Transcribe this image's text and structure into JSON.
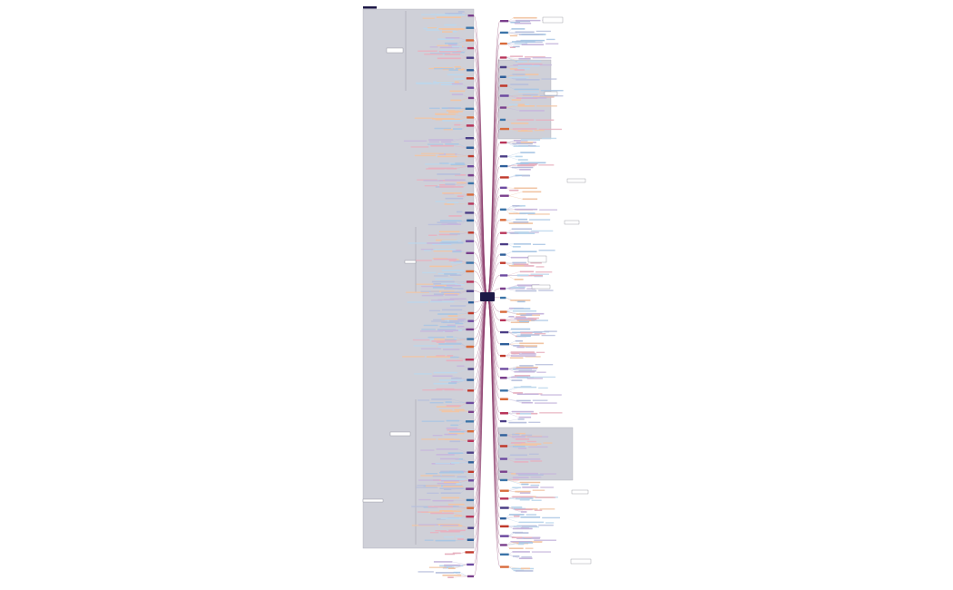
{
  "colors": {
    "background": "#ffffff",
    "panel_fill": "#cfd0d8",
    "panel_stroke": "#a9aab6",
    "center_fill": "#1d1846",
    "line": "#8a3a6a",
    "branch_palette": [
      "#7a3f8c",
      "#3b74a8",
      "#d86a3a",
      "#b8355a",
      "#4b3e86",
      "#2e5f9a",
      "#c0392b",
      "#6d4aa0"
    ],
    "leaf_palette": [
      "#c7b7dd",
      "#a9c6e4",
      "#f1c5a5",
      "#e7b1c0",
      "#b8c0dd",
      "#bcd7ec"
    ]
  },
  "center": {
    "label": ""
  }
}
